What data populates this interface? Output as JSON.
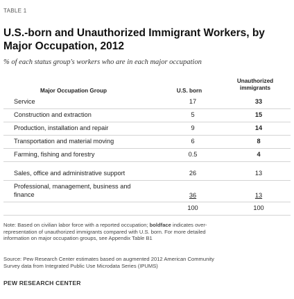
{
  "table_label": "TABLE 1",
  "title": "U.S.-born and Unauthorized Immigrant Workers, by Major Occupation, 2012",
  "subtitle": "% of each status group's workers who are in each major occupation",
  "headers": {
    "group": "Major Occupation Group",
    "us_born": "U.S. born",
    "unauthorized_line1": "Unauthorized",
    "unauthorized_line2": "immigrants"
  },
  "rows": [
    {
      "group": "Service",
      "us_born": "17",
      "unauthorized": "33",
      "bold": true
    },
    {
      "group": "Construction and extraction",
      "us_born": "5",
      "unauthorized": "15",
      "bold": true
    },
    {
      "group": "Production, installation and repair",
      "us_born": "9",
      "unauthorized": "14",
      "bold": true
    },
    {
      "group": "Transportation and material moving",
      "us_born": "6",
      "unauthorized": "8",
      "bold": true
    },
    {
      "group": "Farming, fishing and forestry",
      "us_born": "0.5",
      "unauthorized": "4",
      "bold": true
    },
    {
      "group": "Sales, office and administrative support",
      "us_born": "26",
      "unauthorized": "13",
      "bold": false
    },
    {
      "group_line1": "Professional, management, business and",
      "group_line2": "finance",
      "us_born": "36",
      "unauthorized": "13",
      "bold": false
    }
  ],
  "totals": {
    "us_born": "100",
    "unauthorized": "100"
  },
  "note_lines": [
    "Note: Based on civilian labor force with a reported occupation;",
    "boldface",
    " indicates over-",
    "representation of unauthorized immigrants compared with U.S. born. For more detailed",
    "information on major occupation groups, see Appendix Table B1"
  ],
  "source_lines": [
    "Source: Pew Research Center estimates based on augmented 2012 American Community",
    "Survey data from Integrated Public Use Microdata Series (IPUMS)"
  ],
  "footer": "PEW RESEARCH CENTER"
}
